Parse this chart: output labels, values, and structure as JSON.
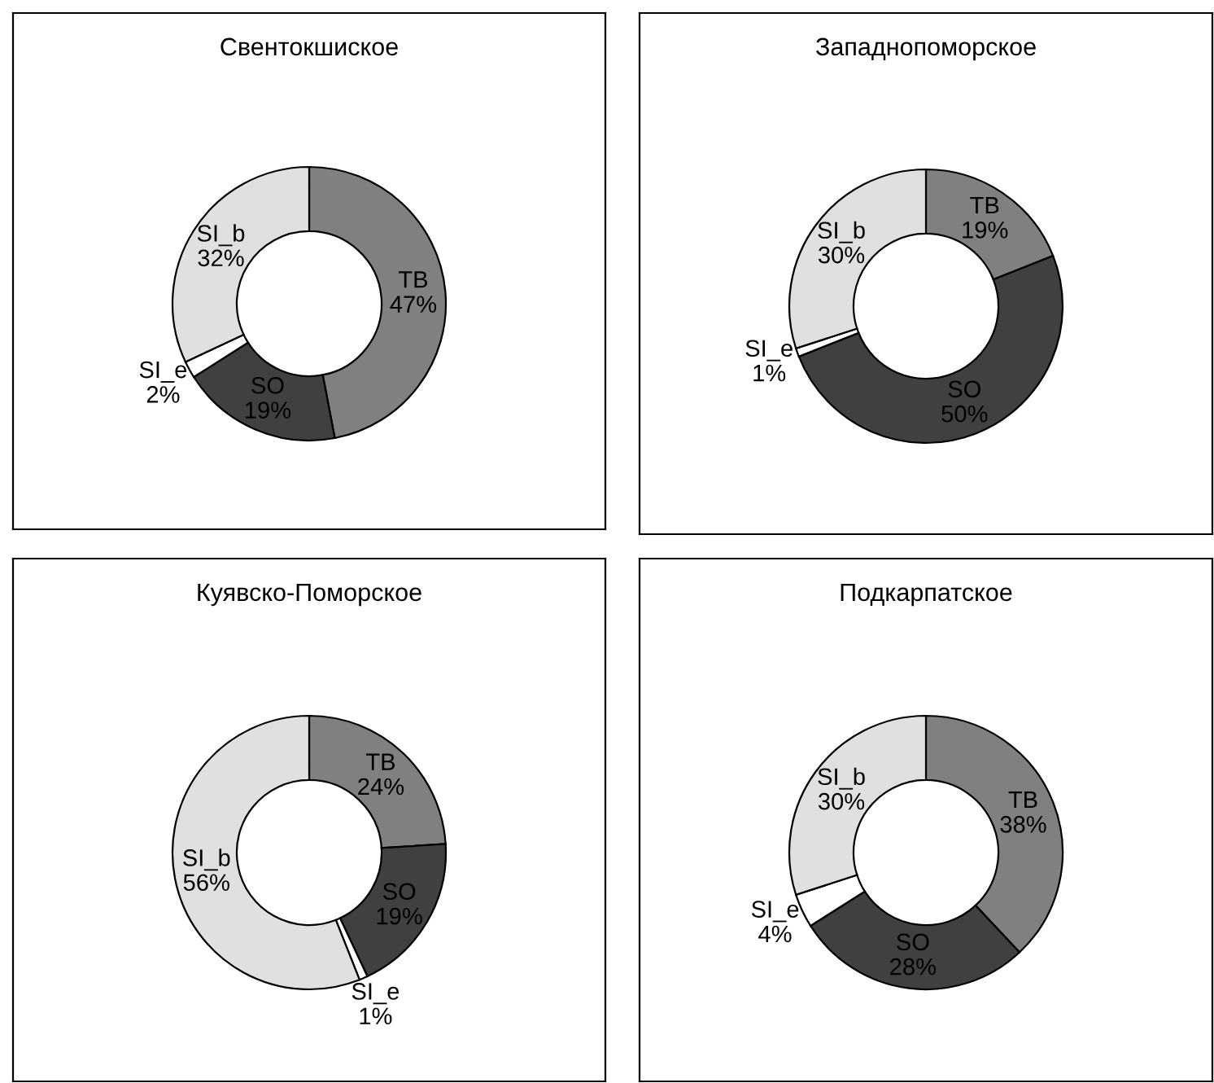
{
  "chart_data": [
    {
      "type": "donut",
      "title": "Свентокшиское",
      "categories": [
        "TB",
        "SO",
        "SI_e",
        "SI_b"
      ],
      "values": [
        47,
        19,
        2,
        32
      ],
      "value_labels": [
        "47%",
        "19%",
        "2%",
        "32%"
      ],
      "colors": [
        "#808080",
        "#404040",
        "#ffffff",
        "#e0e0e0"
      ]
    },
    {
      "type": "donut",
      "title": "Западнопоморское",
      "categories": [
        "TB",
        "SO",
        "SI_e",
        "SI_b"
      ],
      "values": [
        19,
        50,
        1,
        30
      ],
      "value_labels": [
        "19%",
        "50%",
        "1%",
        "30%"
      ],
      "colors": [
        "#808080",
        "#404040",
        "#ffffff",
        "#e0e0e0"
      ]
    },
    {
      "type": "donut",
      "title": "Куявско-Поморское",
      "categories": [
        "TB",
        "SO",
        "SI_e",
        "SI_b"
      ],
      "values": [
        24,
        19,
        1,
        56
      ],
      "value_labels": [
        "24%",
        "19%",
        "1%",
        "56%"
      ],
      "colors": [
        "#808080",
        "#404040",
        "#ffffff",
        "#e0e0e0"
      ]
    },
    {
      "type": "donut",
      "title": "Подкарпатское",
      "categories": [
        "TB",
        "SO",
        "SI_e",
        "SI_b"
      ],
      "values": [
        38,
        28,
        4,
        30
      ],
      "value_labels": [
        "38%",
        "28%",
        "4%",
        "30%"
      ],
      "colors": [
        "#808080",
        "#404040",
        "#ffffff",
        "#e0e0e0"
      ]
    }
  ]
}
